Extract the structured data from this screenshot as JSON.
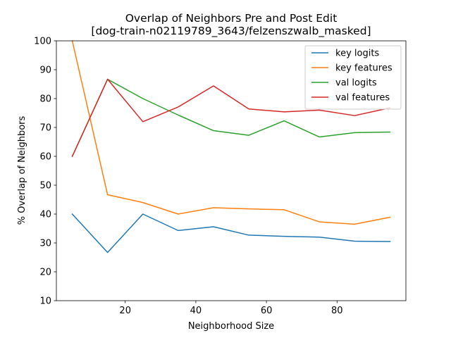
{
  "chart_data": {
    "type": "line",
    "title": "Overlap of Neighbors Pre and Post Edit",
    "subtitle": "[dog-train-n02119789_3643/felzenszwalb_masked]",
    "xlabel": "Neighborhood Size",
    "ylabel": "% Overlap of Neighbors",
    "xlim": [
      0.5,
      99.5
    ],
    "ylim": [
      10,
      100
    ],
    "xticks": [
      20,
      40,
      60,
      80
    ],
    "yticks": [
      10,
      20,
      30,
      40,
      50,
      60,
      70,
      80,
      90,
      100
    ],
    "grid": false,
    "legend_position": "top-right",
    "x": [
      5,
      15,
      25,
      35,
      45,
      55,
      65,
      75,
      85,
      95
    ],
    "series": [
      {
        "name": "key logits",
        "color": "#1f77b4",
        "values": [
          40.0,
          26.7,
          40.0,
          34.3,
          35.6,
          32.7,
          32.3,
          32.0,
          30.6,
          30.5
        ]
      },
      {
        "name": "key features",
        "color": "#ff7f0e",
        "values": [
          100.0,
          46.7,
          44.0,
          40.0,
          42.2,
          41.8,
          41.5,
          37.3,
          36.5,
          38.9
        ]
      },
      {
        "name": "val logits",
        "color": "#2ca02c",
        "values": [
          60.0,
          86.7,
          80.0,
          74.3,
          68.9,
          67.3,
          72.3,
          66.7,
          68.2,
          68.4
        ]
      },
      {
        "name": "val features",
        "color": "#d62728",
        "values": [
          60.0,
          86.7,
          72.0,
          77.1,
          84.4,
          76.4,
          75.4,
          76.0,
          74.1,
          76.8
        ]
      }
    ]
  }
}
